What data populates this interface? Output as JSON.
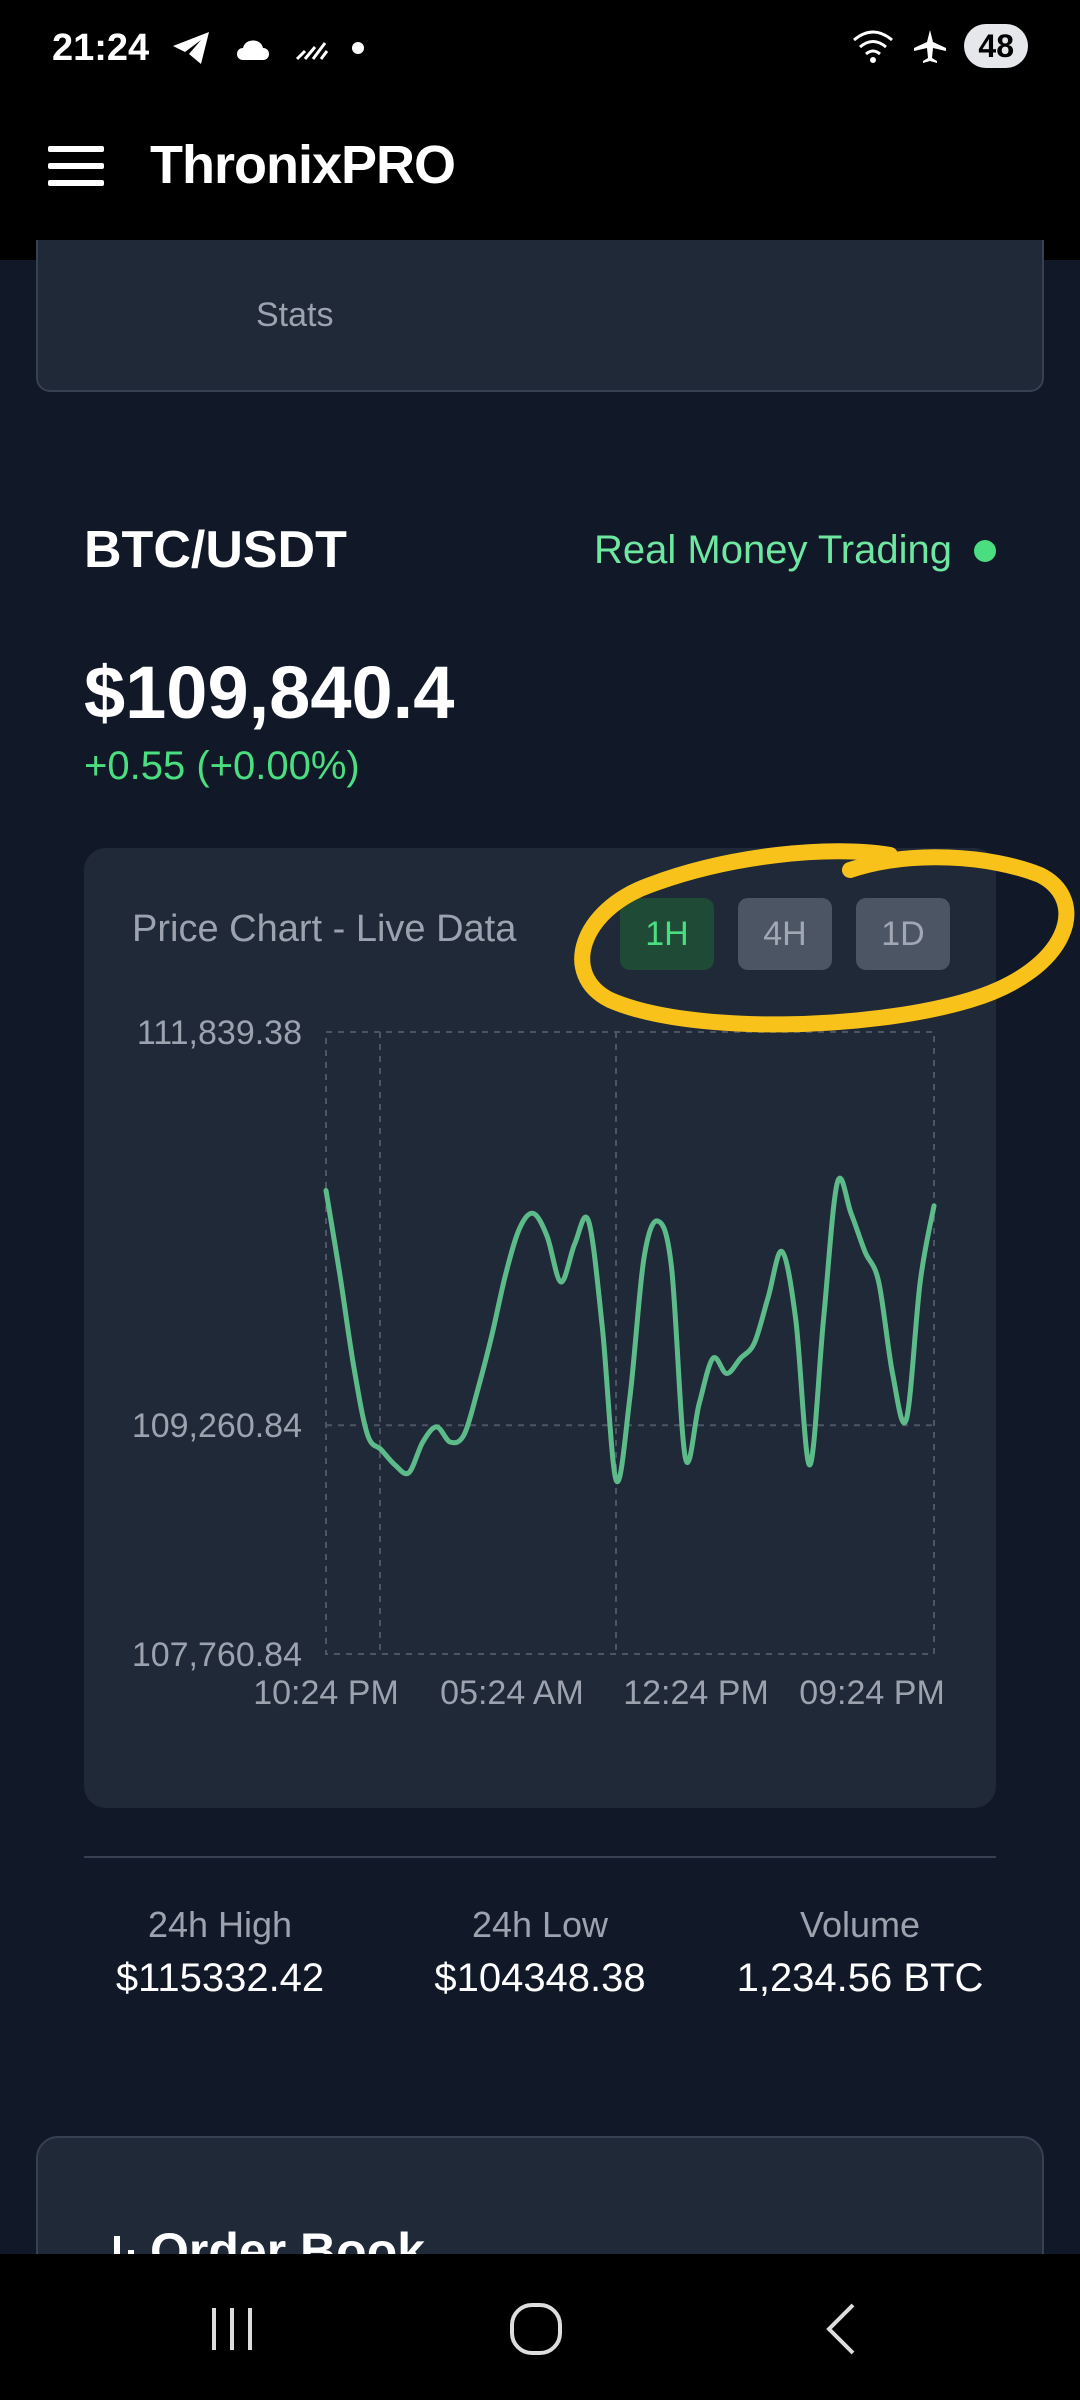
{
  "status_bar": {
    "time": "21:24",
    "left_icons": [
      "telegram-icon",
      "cloud-icon",
      "signal-slash-icon",
      "dot-icon"
    ],
    "battery": "48"
  },
  "app": {
    "title": "ThronixPRO"
  },
  "stats_card": {
    "label": "Stats"
  },
  "pair": {
    "symbol": "BTC/USDT",
    "mode": "Real Money Trading"
  },
  "ticker": {
    "price": "$109,840.4",
    "change": "+0.55 (+0.00%)"
  },
  "chart": {
    "title": "Price Chart - Live Data",
    "timeframes": [
      {
        "label": "1H",
        "active": true
      },
      {
        "label": "4H",
        "active": false
      },
      {
        "label": "1D",
        "active": false
      }
    ],
    "y_ticks": [
      "111,839.38",
      "109,260.84",
      "107,760.84"
    ],
    "x_ticks": [
      "10:24 PM",
      "05:24 AM",
      "12:24 PM",
      "09:24 PM"
    ],
    "line_color": "#5dbb8a"
  },
  "chart_data": {
    "type": "line",
    "title": "Price Chart - Live Data",
    "xlabel": "",
    "ylabel": "",
    "x_ticks": [
      "10:24 PM",
      "05:24 AM",
      "12:24 PM",
      "09:24 PM"
    ],
    "y_ticks": [
      111839.38,
      109260.84,
      107760.84
    ],
    "grid": true,
    "series": [
      {
        "values": [
          110800,
          110250,
          109650,
          109200,
          109100,
          109000,
          108950,
          109150,
          109250,
          109150,
          109200,
          109500,
          109850,
          110250,
          110550,
          110650,
          110500,
          110200,
          110450,
          110600,
          109900,
          108900,
          109450,
          110350,
          110600,
          110300,
          109050,
          109400,
          109700,
          109600,
          109700,
          109800,
          110100,
          110400,
          109950,
          109000,
          109950,
          110850,
          110650,
          110400,
          110200,
          109600,
          109300,
          110200,
          110700
        ]
      }
    ]
  },
  "market_stats": [
    {
      "label": "24h High",
      "value": "$115332.42"
    },
    {
      "label": "24h Low",
      "value": "$104348.38"
    },
    {
      "label": "Volume",
      "value": "1,234.56 BTC"
    }
  ],
  "order_book": {
    "title": "Order Book"
  },
  "nav": {
    "items": [
      "recents-icon",
      "home-icon",
      "back-icon"
    ]
  }
}
